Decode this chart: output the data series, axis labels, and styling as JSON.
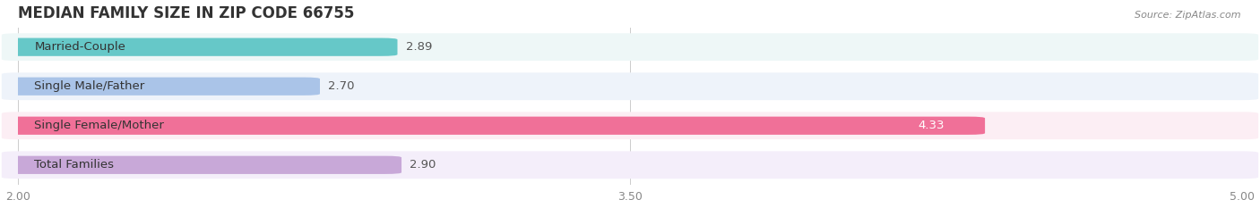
{
  "title": "MEDIAN FAMILY SIZE IN ZIP CODE 66755",
  "source": "Source: ZipAtlas.com",
  "categories": [
    "Married-Couple",
    "Single Male/Father",
    "Single Female/Mother",
    "Total Families"
  ],
  "values": [
    2.89,
    2.7,
    4.33,
    2.9
  ],
  "bar_colors": [
    "#66c8c8",
    "#aac4e8",
    "#f07098",
    "#c8a8d8"
  ],
  "bar_bg_colors": [
    "#eef7f7",
    "#eef3fa",
    "#fceef4",
    "#f4eefa"
  ],
  "xlim": [
    2.0,
    5.0
  ],
  "xticks": [
    2.0,
    3.5,
    5.0
  ],
  "label_fontsize": 9.5,
  "value_fontsize": 9.5,
  "title_fontsize": 12,
  "background_color": "#ffffff"
}
